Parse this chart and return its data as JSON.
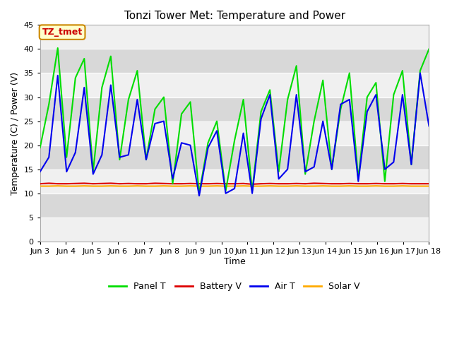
{
  "title": "Tonzi Tower Met: Temperature and Power",
  "xlabel": "Time",
  "ylabel": "Temperature (C) / Power (V)",
  "ylim": [
    0,
    45
  ],
  "yticks": [
    0,
    5,
    10,
    15,
    20,
    25,
    30,
    35,
    40,
    45
  ],
  "xtick_labels": [
    "Jun 3",
    "Jun 4",
    "Jun 5",
    "Jun 6",
    "Jun 7",
    "Jun 8",
    "Jun 9",
    "Jun 10",
    "Jun 11",
    "Jun 12",
    "Jun 13",
    "Jun 14",
    "Jun 15",
    "Jun 16",
    "Jun 17",
    "Jun 18"
  ],
  "legend_labels": [
    "Panel T",
    "Battery V",
    "Air T",
    "Solar V"
  ],
  "legend_colors": [
    "#00dd00",
    "#dd0000",
    "#0000ee",
    "#ffaa00"
  ],
  "panel_t_color": "#00dd00",
  "battery_v_color": "#dd0000",
  "air_t_color": "#0000ee",
  "solar_v_color": "#ffaa00",
  "plot_bg_color": "#e8e8e8",
  "band_color_light": "#f0f0f0",
  "band_color_dark": "#d8d8d8",
  "annotation_text": "TZ_tmet",
  "annotation_color": "#cc0000",
  "annotation_bg": "#ffffcc",
  "annotation_border": "#cc8800",
  "panel_t": [
    19.5,
    28.5,
    40.2,
    17.5,
    34.0,
    38.0,
    14.5,
    32.0,
    38.5,
    17.0,
    29.5,
    35.5,
    17.0,
    27.5,
    30.0,
    12.0,
    26.5,
    29.0,
    10.0,
    20.5,
    25.0,
    10.5,
    21.0,
    29.5,
    10.5,
    27.0,
    31.5,
    14.5,
    29.5,
    36.5,
    14.0,
    25.0,
    33.5,
    15.0,
    27.5,
    35.0,
    13.0,
    30.0,
    33.0,
    12.5,
    30.5,
    35.5,
    16.0,
    35.5,
    40.0
  ],
  "air_t": [
    14.5,
    17.5,
    34.5,
    14.5,
    18.5,
    32.0,
    14.0,
    18.0,
    32.5,
    17.5,
    18.0,
    29.5,
    17.0,
    24.5,
    25.0,
    13.0,
    20.5,
    20.0,
    9.5,
    19.5,
    23.0,
    10.0,
    11.0,
    22.5,
    10.0,
    25.5,
    30.5,
    13.0,
    15.0,
    30.5,
    14.5,
    15.5,
    25.0,
    15.0,
    28.5,
    29.5,
    12.5,
    27.0,
    30.5,
    15.0,
    16.5,
    30.5,
    16.0,
    35.0,
    24.0
  ],
  "battery_v": [
    12.0,
    12.1,
    12.0,
    12.0,
    12.05,
    12.1,
    12.0,
    12.05,
    12.1,
    12.0,
    12.05,
    12.0,
    12.0,
    12.1,
    12.05,
    12.0,
    12.0,
    12.05,
    12.0,
    12.0,
    12.05,
    12.0,
    12.0,
    12.05,
    11.9,
    12.0,
    12.05,
    12.0,
    12.0,
    12.05,
    12.0,
    12.1,
    12.05,
    12.0,
    12.0,
    12.05,
    12.0,
    12.0,
    12.05,
    12.0,
    12.0,
    12.05,
    12.0,
    12.0,
    12.0
  ],
  "solar_v": [
    11.5,
    11.5,
    11.55,
    11.5,
    11.5,
    11.55,
    11.5,
    11.5,
    11.55,
    11.5,
    11.5,
    11.55,
    11.5,
    11.5,
    11.55,
    11.5,
    11.5,
    11.55,
    11.5,
    11.5,
    11.55,
    11.5,
    11.5,
    11.55,
    11.5,
    11.5,
    11.55,
    11.5,
    11.5,
    11.55,
    11.5,
    11.5,
    11.55,
    11.5,
    11.5,
    11.55,
    11.5,
    11.5,
    11.55,
    11.5,
    11.5,
    11.55,
    11.5,
    11.5,
    11.5
  ]
}
